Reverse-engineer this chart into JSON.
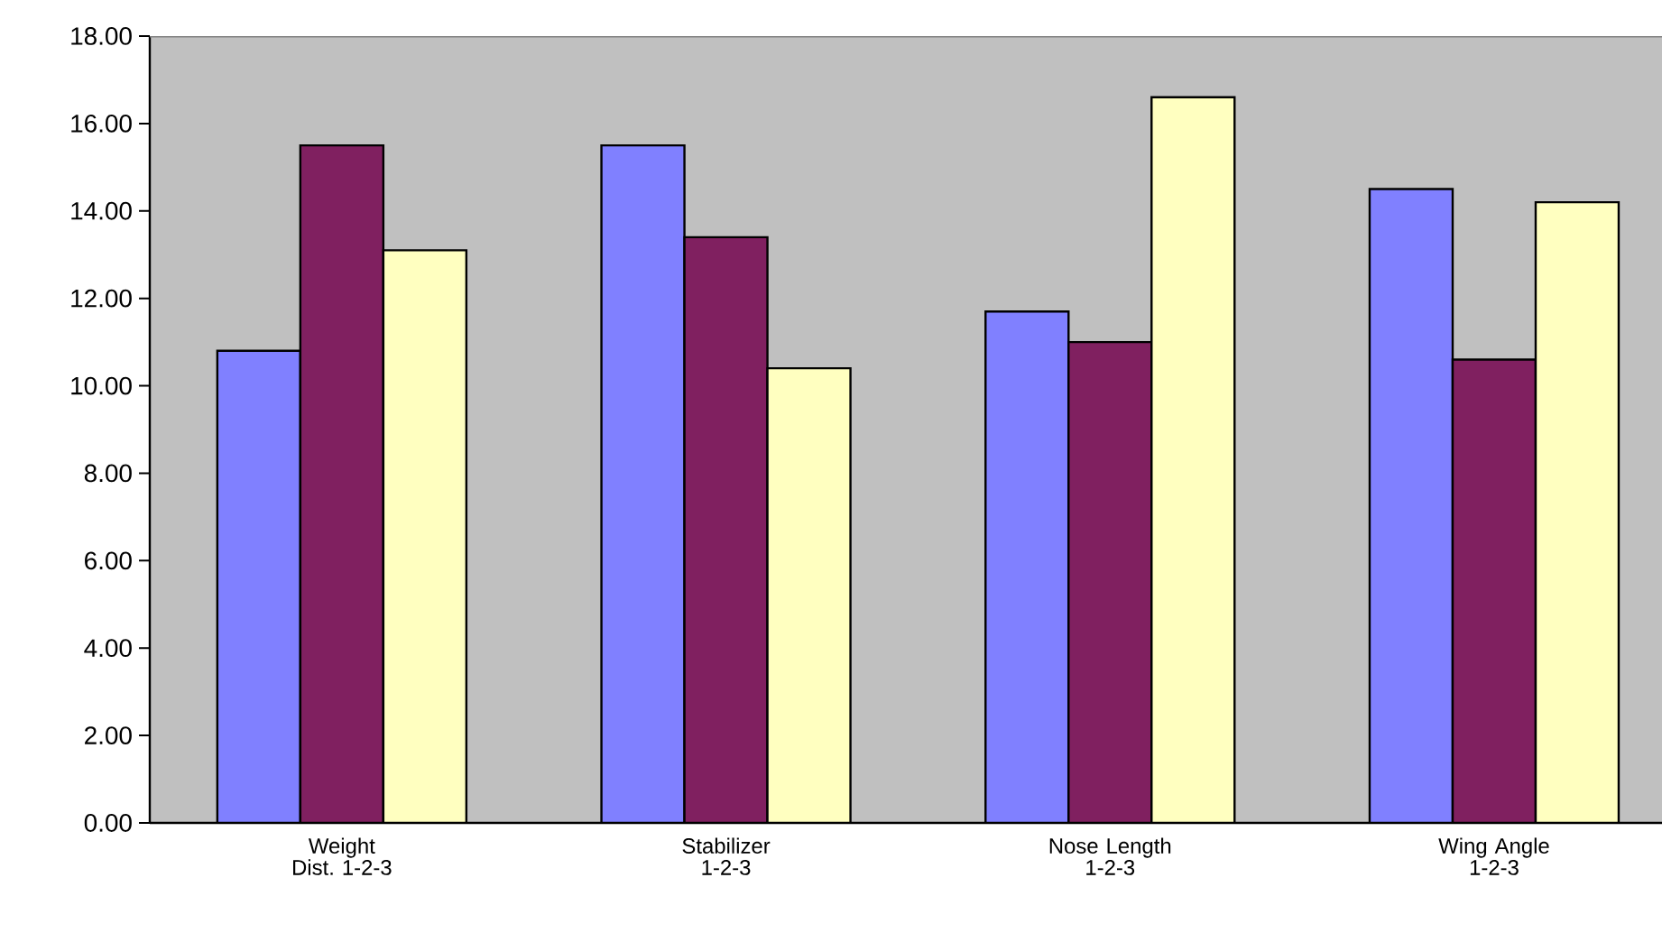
{
  "chart_data": {
    "type": "bar",
    "categories": [
      "Weight Dist. 1-2-3",
      "Stabilizer 1-2-3",
      "Nose Length 1-2-3",
      "Wing Angle 1-2-3"
    ],
    "series": [
      {
        "color": "#8080ff",
        "values": [
          10.8,
          15.5,
          11.7,
          14.5
        ]
      },
      {
        "color": "#802060",
        "values": [
          15.5,
          13.4,
          11.0,
          10.6
        ]
      },
      {
        "color": "#ffffc0",
        "values": [
          13.1,
          10.4,
          16.6,
          14.2
        ]
      }
    ],
    "ylim": [
      0,
      18
    ],
    "yticks": [
      {
        "value": 0,
        "label": "0.00"
      },
      {
        "value": 2,
        "label": "2.00"
      },
      {
        "value": 4,
        "label": "4.00"
      },
      {
        "value": 6,
        "label": "6.00"
      },
      {
        "value": 8,
        "label": "8.00"
      },
      {
        "value": 10,
        "label": "10.00"
      },
      {
        "value": 12,
        "label": "12.00"
      },
      {
        "value": 14,
        "label": "14.00"
      },
      {
        "value": 16,
        "label": "16.00"
      },
      {
        "value": 18,
        "label": "18.00"
      }
    ],
    "grid": false,
    "legend": false
  }
}
